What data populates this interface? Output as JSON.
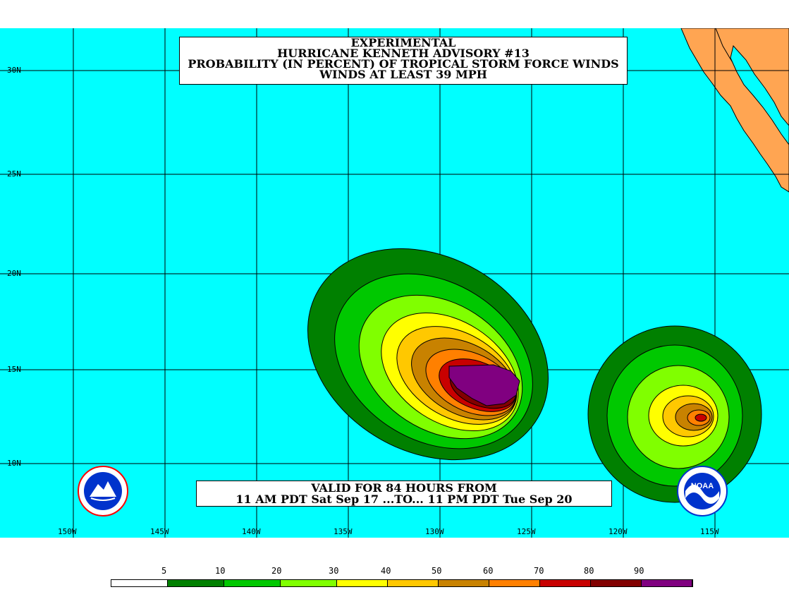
{
  "title": {
    "line1": "EXPERIMENTAL",
    "line2": "HURRICANE KENNETH ADVISORY #13",
    "line3": "PROBABILITY (IN PERCENT) OF TROPICAL STORM FORCE WINDS",
    "line4": "WINDS AT LEAST 39 MPH"
  },
  "valid": {
    "line1": "VALID FOR 84 HOURS FROM",
    "line2": "11 AM PDT Sat Sep 17 ...TO... 11 PM PDT Tue Sep 20"
  },
  "latitude_labels": [
    "30N",
    "25N",
    "20N",
    "15N",
    "10N"
  ],
  "longitude_labels": [
    "150W",
    "145W",
    "140W",
    "135W",
    "130W",
    "125W",
    "120W",
    "115W"
  ],
  "legend": {
    "labels": [
      "5",
      "10",
      "20",
      "30",
      "40",
      "50",
      "60",
      "70",
      "80",
      "90"
    ],
    "colors": [
      "#ffffff",
      "#008000",
      "#00c800",
      "#80ff00",
      "#ffff00",
      "#ffc800",
      "#c88200",
      "#ff8000",
      "#c80000",
      "#820000",
      "#800080"
    ]
  },
  "colors": {
    "ocean": "#00ffff",
    "land": "#ffa552",
    "grid": "#000000"
  },
  "logos": [
    "nws-logo-icon",
    "noaa-logo-icon"
  ]
}
